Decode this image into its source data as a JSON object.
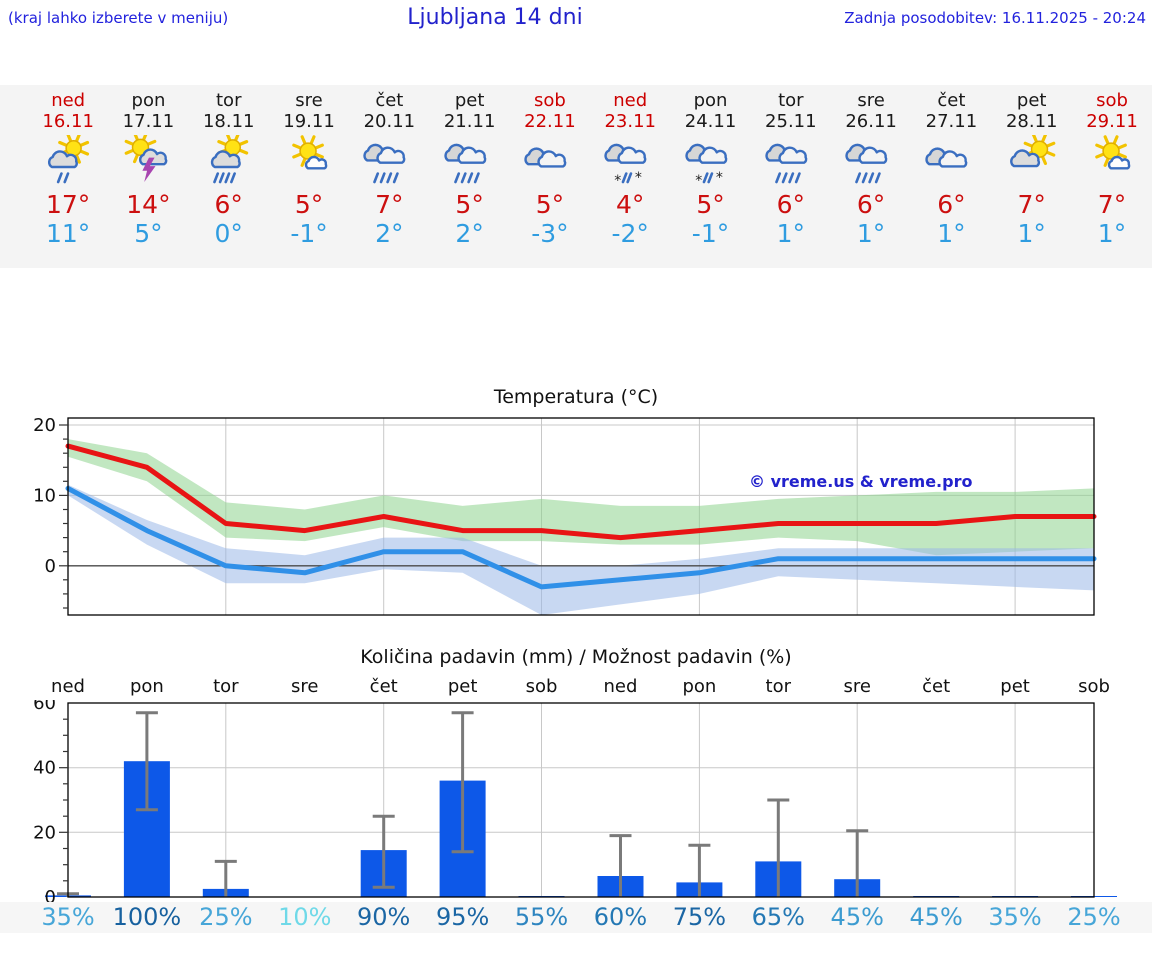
{
  "header": {
    "note": "(kraj lahko izberete v meniju)",
    "title": "Ljubljana 14 dni",
    "updated": "Zadnja posodobitev: 16.11.2025 - 20:24"
  },
  "colors": {
    "weekend_red": "#cc0000",
    "tmax_red": "#cc0f0f",
    "tmin_blue": "#2f9ce0",
    "strip_bg": "#f4f4f4",
    "line_red": "#e81414",
    "line_blue": "#3090e8",
    "band_green": "#8ed48e",
    "band_blue": "#9ab8e8",
    "bar_blue": "#0d58e8",
    "errorbar_gray": "#7a7a7a",
    "watermark_blue": "#2222cc"
  },
  "forecast_days": [
    {
      "day": "ned",
      "date": "16.11",
      "weekend": true,
      "icon": "sun-cloud-rain",
      "tmax": "17°",
      "tmin": "11°"
    },
    {
      "day": "pon",
      "date": "17.11",
      "weekend": false,
      "icon": "sun-cloud-thunder",
      "tmax": "14°",
      "tmin": "5°"
    },
    {
      "day": "tor",
      "date": "18.11",
      "weekend": false,
      "icon": "sun-cloud-heavyrain",
      "tmax": "6°",
      "tmin": "0°"
    },
    {
      "day": "sre",
      "date": "19.11",
      "weekend": false,
      "icon": "sun-smallcloud",
      "tmax": "5°",
      "tmin": "-1°"
    },
    {
      "day": "čet",
      "date": "20.11",
      "weekend": false,
      "icon": "clouds-heavyrain",
      "tmax": "7°",
      "tmin": "2°"
    },
    {
      "day": "pet",
      "date": "21.11",
      "weekend": false,
      "icon": "clouds-heavyrain",
      "tmax": "5°",
      "tmin": "2°"
    },
    {
      "day": "sob",
      "date": "22.11",
      "weekend": true,
      "icon": "cloudy",
      "tmax": "5°",
      "tmin": "-3°"
    },
    {
      "day": "ned",
      "date": "23.11",
      "weekend": true,
      "icon": "clouds-sleet",
      "tmax": "4°",
      "tmin": "-2°"
    },
    {
      "day": "pon",
      "date": "24.11",
      "weekend": false,
      "icon": "clouds-sleet",
      "tmax": "5°",
      "tmin": "-1°"
    },
    {
      "day": "tor",
      "date": "25.11",
      "weekend": false,
      "icon": "clouds-heavyrain",
      "tmax": "6°",
      "tmin": "1°"
    },
    {
      "day": "sre",
      "date": "26.11",
      "weekend": false,
      "icon": "clouds-heavyrain",
      "tmax": "6°",
      "tmin": "1°"
    },
    {
      "day": "čet",
      "date": "27.11",
      "weekend": false,
      "icon": "cloudy",
      "tmax": "6°",
      "tmin": "1°"
    },
    {
      "day": "pet",
      "date": "28.11",
      "weekend": false,
      "icon": "sun-cloud",
      "tmax": "7°",
      "tmin": "1°"
    },
    {
      "day": "sob",
      "date": "29.11",
      "weekend": true,
      "icon": "sun-smallcloud",
      "tmax": "7°",
      "tmin": "1°"
    }
  ],
  "chart_data": [
    {
      "type": "line",
      "title": "Temperatura (°C)",
      "watermark": "© vreme.us & vreme.pro",
      "categories": [
        "ned",
        "pon",
        "tor",
        "sre",
        "čet",
        "pet",
        "sob",
        "ned",
        "pon",
        "tor",
        "sre",
        "čet",
        "pet",
        "sob"
      ],
      "ylim": [
        -7,
        21
      ],
      "yticks": [
        0,
        10,
        20
      ],
      "grid": true,
      "series": [
        {
          "name": "max temperature",
          "color": "#e81414",
          "values": [
            17,
            14,
            6,
            5,
            7,
            5,
            5,
            4,
            5,
            6,
            6,
            6,
            7,
            7
          ]
        },
        {
          "name": "min temperature",
          "color": "#3090e8",
          "values": [
            11,
            5,
            0,
            -1,
            2,
            2,
            -3,
            -2,
            -1,
            1,
            1,
            1,
            1,
            1
          ]
        }
      ],
      "bands": [
        {
          "name": "max range",
          "color": "#8ed48e",
          "upper": [
            18,
            16,
            9,
            8,
            10,
            8.5,
            9.5,
            8.5,
            8.5,
            9.5,
            10,
            10.5,
            10.5,
            11
          ],
          "lower": [
            15.5,
            12,
            4,
            3.5,
            5.5,
            3.5,
            3.5,
            3,
            3,
            4,
            3.5,
            1.5,
            2,
            2.5
          ]
        },
        {
          "name": "min range",
          "color": "#9ab8e8",
          "upper": [
            11.5,
            6.5,
            2.5,
            1.5,
            4,
            4,
            0,
            0,
            1,
            2.5,
            2.5,
            2.5,
            2.5,
            2.5
          ],
          "lower": [
            10,
            3,
            -2.5,
            -2.5,
            -0.5,
            -1,
            -7,
            -5.5,
            -4,
            -1.5,
            -2,
            -2.5,
            -3,
            -3.5
          ]
        }
      ]
    },
    {
      "type": "bar",
      "title": "Količina padavin (mm) / Možnost padavin (%)",
      "categories": [
        "ned",
        "pon",
        "tor",
        "sre",
        "čet",
        "pet",
        "sob",
        "ned",
        "pon",
        "tor",
        "sre",
        "čet",
        "pet",
        "sob"
      ],
      "ylim": [
        0,
        60
      ],
      "yticks": [
        0,
        20,
        40,
        60
      ],
      "grid": true,
      "bar_color": "#0d58e8",
      "values": [
        0.5,
        42,
        2.5,
        0,
        14.5,
        36,
        0.2,
        6.5,
        4.5,
        11,
        5.5,
        0.2,
        0.3,
        0.2
      ],
      "err_low": [
        0,
        27,
        0,
        null,
        3,
        14,
        null,
        0,
        0,
        0,
        0,
        null,
        null,
        null
      ],
      "err_high": [
        1,
        57,
        11,
        null,
        25,
        57,
        null,
        19,
        16,
        30,
        20.5,
        null,
        null,
        null
      ],
      "percent_labels": [
        "35%",
        "100%",
        "25%",
        "10%",
        "90%",
        "95%",
        "55%",
        "60%",
        "75%",
        "65%",
        "45%",
        "45%",
        "35%",
        "25%"
      ],
      "percent_colors": [
        "#47a6d8",
        "#17619f",
        "#47a6d8",
        "#6fd9e8",
        "#1b66a4",
        "#1b66a4",
        "#2e85c0",
        "#2478b4",
        "#1b66a4",
        "#2478b4",
        "#3c9bd0",
        "#3c9bd0",
        "#47a6d8",
        "#47a6d8"
      ]
    }
  ]
}
